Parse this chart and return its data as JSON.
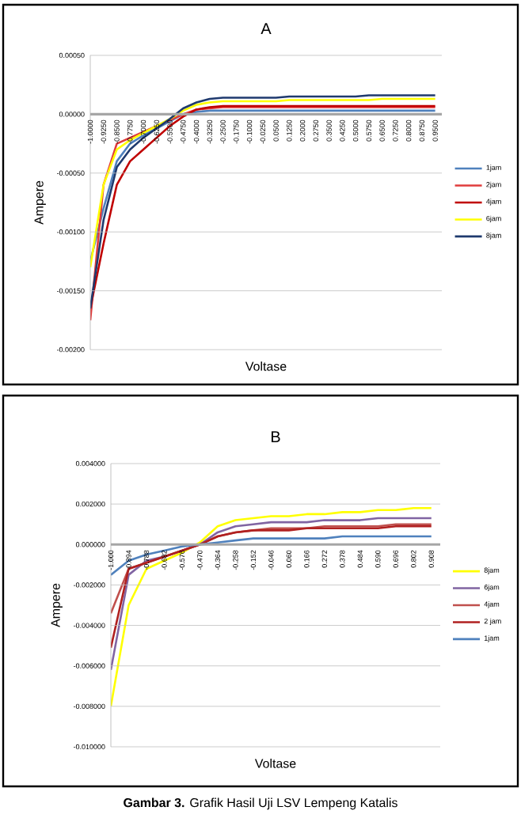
{
  "chart_data": [
    {
      "type": "line",
      "title": "A",
      "xlabel": "Voltase",
      "ylabel": "Ampere",
      "grid": "y",
      "legend": "right",
      "categories": [
        "-1.0000",
        "-0.9250",
        "-0.8500",
        "-0.7750",
        "-0.7000",
        "-0.6250",
        "-0.5500",
        "-0.4750",
        "-0.4000",
        "-0.3250",
        "-0.2500",
        "-0.1750",
        "-0.1000",
        "-0.0250",
        "0.0500",
        "0.1250",
        "0.2000",
        "0.2750",
        "0.3500",
        "0.4250",
        "0.5000",
        "0.5750",
        "0.6500",
        "0.7250",
        "0.8000",
        "0.8750",
        "0.9500"
      ],
      "ylim": [
        -0.002,
        0.0005
      ],
      "yticks": [
        {
          "value": -0.002,
          "label": "-0.00200"
        },
        {
          "value": -0.0015,
          "label": "-0.00150"
        },
        {
          "value": -0.001,
          "label": "-0.00100"
        },
        {
          "value": -0.0005,
          "label": "-0.00050"
        },
        {
          "value": 0,
          "label": "0.00000"
        },
        {
          "value": 0.0005,
          "label": "0.00050"
        }
      ],
      "series": [
        {
          "name": "1jam",
          "color": "#4f81bd",
          "values": [
            -0.00125,
            -0.0008,
            -0.0004,
            -0.00025,
            -0.00018,
            -0.00012,
            -6e-05,
            0.0,
            2e-05,
            3e-05,
            3e-05,
            3e-05,
            3e-05,
            3e-05,
            3e-05,
            3e-05,
            3e-05,
            3e-05,
            3e-05,
            3e-05,
            3e-05,
            3e-05,
            3e-05,
            3e-05,
            3e-05,
            3e-05,
            3e-05
          ]
        },
        {
          "name": "2jam",
          "color": "#e03c3c",
          "values": [
            -0.00175,
            -0.0006,
            -0.00025,
            -0.0002,
            -0.00015,
            -0.0001,
            -5e-05,
            0.0,
            4e-05,
            5e-05,
            6e-05,
            6e-05,
            6e-05,
            6e-05,
            6e-05,
            6e-05,
            6e-05,
            6e-05,
            6e-05,
            6e-05,
            6e-05,
            6e-05,
            6e-05,
            6e-05,
            6e-05,
            6e-05,
            6e-05
          ]
        },
        {
          "name": "4jam",
          "color": "#c00000",
          "values": [
            -0.00165,
            -0.0011,
            -0.0006,
            -0.0004,
            -0.0003,
            -0.0002,
            -0.0001,
            -2e-05,
            4e-05,
            6e-05,
            7e-05,
            7e-05,
            7e-05,
            7e-05,
            7e-05,
            7e-05,
            7e-05,
            7e-05,
            7e-05,
            7e-05,
            7e-05,
            7e-05,
            7e-05,
            7e-05,
            7e-05,
            7e-05,
            7e-05
          ]
        },
        {
          "name": "6jam",
          "color": "#ffff00",
          "values": [
            -0.0013,
            -0.0006,
            -0.0003,
            -0.00022,
            -0.00016,
            -0.0001,
            -4e-05,
            3e-05,
            8e-05,
            0.0001,
            0.00011,
            0.00011,
            0.00011,
            0.00011,
            0.00011,
            0.00012,
            0.00012,
            0.00012,
            0.00012,
            0.00012,
            0.00012,
            0.00012,
            0.00013,
            0.00013,
            0.00013,
            0.00013,
            0.00013
          ]
        },
        {
          "name": "8jam",
          "color": "#1f3a6e",
          "values": [
            -0.00165,
            -0.0009,
            -0.00045,
            -0.0003,
            -0.0002,
            -0.00012,
            -4e-05,
            5e-05,
            0.0001,
            0.00013,
            0.00014,
            0.00014,
            0.00014,
            0.00014,
            0.00014,
            0.00015,
            0.00015,
            0.00015,
            0.00015,
            0.00015,
            0.00015,
            0.00016,
            0.00016,
            0.00016,
            0.00016,
            0.00016,
            0.00016
          ]
        }
      ]
    },
    {
      "type": "line",
      "title": "B",
      "xlabel": "Voltase",
      "ylabel": "Ampere",
      "grid": "y",
      "legend": "right",
      "categories": [
        "-1.000",
        "-0.894",
        "-0.788",
        "-0.682",
        "-0.576",
        "-0.470",
        "-0.364",
        "-0.258",
        "-0.152",
        "-0.046",
        "0.060",
        "0.166",
        "0.272",
        "0.378",
        "0.484",
        "0.590",
        "0.696",
        "0.802",
        "0.908"
      ],
      "ylim": [
        -0.01,
        0.004
      ],
      "yticks": [
        {
          "value": -0.01,
          "label": "-0.010000"
        },
        {
          "value": -0.008,
          "label": "-0.008000"
        },
        {
          "value": -0.006,
          "label": "-0.006000"
        },
        {
          "value": -0.004,
          "label": "-0.004000"
        },
        {
          "value": -0.002,
          "label": "-0.002000"
        },
        {
          "value": 0,
          "label": "0.000000"
        },
        {
          "value": 0.002,
          "label": "0.002000"
        },
        {
          "value": 0.004,
          "label": "0.004000"
        }
      ],
      "annotations": [
        "**Gambar 3.** Grafik Hasil Uji LSV Lempeng Katalis"
      ],
      "series": [
        {
          "name": "8jam",
          "color": "#ffff00",
          "values": [
            -0.008,
            -0.003,
            -0.0012,
            -0.0008,
            -0.0004,
            0.0001,
            0.0009,
            0.0012,
            0.0013,
            0.0014,
            0.0014,
            0.0015,
            0.0015,
            0.0016,
            0.0016,
            0.0017,
            0.0017,
            0.0018,
            0.0018
          ]
        },
        {
          "name": "6jam",
          "color": "#8064a2",
          "values": [
            -0.0062,
            -0.0015,
            -0.0008,
            -0.0006,
            -0.0003,
            0,
            0.0006,
            0.0009,
            0.001,
            0.0011,
            0.0011,
            0.0011,
            0.0012,
            0.0012,
            0.0012,
            0.0013,
            0.0013,
            0.0013,
            0.0013
          ]
        },
        {
          "name": "4jam",
          "color": "#c0504d",
          "values": [
            -0.0034,
            -0.0012,
            -0.0009,
            -0.0006,
            -0.0003,
            0,
            0.0004,
            0.0006,
            0.0007,
            0.0008,
            0.0008,
            0.0008,
            0.0009,
            0.0009,
            0.0009,
            0.0009,
            0.001,
            0.001,
            0.001
          ]
        },
        {
          "name": "2 jam",
          "color": "#b02020",
          "values": [
            -0.0051,
            -0.0012,
            -0.0009,
            -0.0006,
            -0.0003,
            0,
            0.0004,
            0.0006,
            0.0007,
            0.0007,
            0.0007,
            0.0008,
            0.0008,
            0.0008,
            0.0008,
            0.0008,
            0.0009,
            0.0009,
            0.0009
          ]
        },
        {
          "name": "1jam",
          "color": "#4f81bd",
          "values": [
            -0.0015,
            -0.0008,
            -0.0005,
            -0.0003,
            -0.0001,
            0,
            0.0001,
            0.0002,
            0.0003,
            0.0003,
            0.0003,
            0.0003,
            0.0003,
            0.0004,
            0.0004,
            0.0004,
            0.0004,
            0.0004,
            0.0004
          ]
        }
      ]
    }
  ]
}
